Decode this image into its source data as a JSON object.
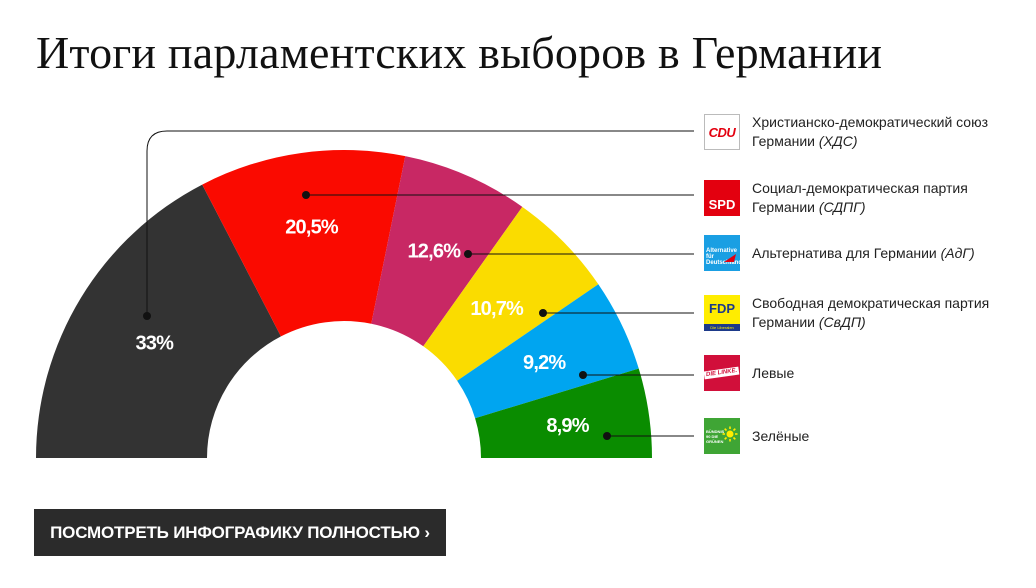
{
  "title": "Итоги парламентских выборов в Германии",
  "cta_label": "ПОСМОТРЕТЬ ИНФОГРАФИКУ ПОЛНОСТЬЮ ›",
  "chart_data": {
    "type": "pie",
    "shape": "half-donut",
    "title": "Итоги парламентских выборов в Германии",
    "slices": [
      {
        "party": "Христианско-демократический союз Германии",
        "abbr": "ХДС",
        "value": 33,
        "label": "33%",
        "color": "#333333"
      },
      {
        "party": "Социал-демократическая партия Германии",
        "abbr": "СДПГ",
        "value": 20.5,
        "label": "20,5%",
        "color": "#fa0a00"
      },
      {
        "party": "Левые",
        "abbr": "",
        "value": 12.6,
        "label": "12,6%",
        "color": "#c82864"
      },
      {
        "party": "Свободная демократическая партия Германии",
        "abbr": "СвДП",
        "value": 10.7,
        "label": "10,7%",
        "color": "#fadc00"
      },
      {
        "party": "Альтернатива для Германии",
        "abbr": "АдГ",
        "value": 9.2,
        "label": "9,2%",
        "color": "#00a5f0"
      },
      {
        "party": "Зелёные",
        "abbr": "",
        "value": 8.9,
        "label": "8,9%",
        "color": "#0a8c00"
      }
    ]
  },
  "legend": [
    {
      "text": "Христианско-демократический союз Германии",
      "abbr": "(ХДС)",
      "logo": "CDU",
      "logo_name": "cdu-logo-icon"
    },
    {
      "text": "Социал-демократическая партия Германии",
      "abbr": "(СДПГ)",
      "logo": "SPD",
      "logo_name": "spd-logo-icon"
    },
    {
      "text": "Альтернатива для Германии",
      "abbr": "(АдГ)",
      "logo": "Alternative für Deutschland",
      "logo_name": "afd-logo-icon"
    },
    {
      "text": "Свободная демократическая партия Германии",
      "abbr": "(СвДП)",
      "logo": "FDP",
      "logo_sub": "Die Liberalen",
      "logo_name": "fdp-logo-icon"
    },
    {
      "text": "Левые",
      "abbr": "",
      "logo": "DIE LINKE.",
      "logo_name": "linke-logo-icon"
    },
    {
      "text": "Зелёные",
      "abbr": "",
      "logo": "BÜNDNIS 90 DIE GRÜNEN",
      "logo_name": "greens-logo-icon"
    }
  ]
}
